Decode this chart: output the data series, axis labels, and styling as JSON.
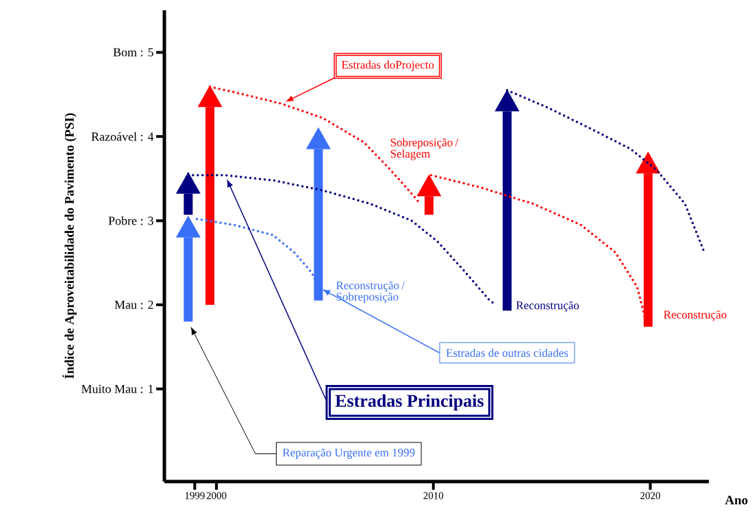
{
  "chart_data": {
    "type": "line",
    "ylabel": "Índice de Aproveitabilidade do Pavimento (PSI)",
    "xlabel": "Ano",
    "xlim": [
      1997.6,
      2022.7
    ],
    "xticks": [
      1999,
      2000,
      2010,
      2020
    ],
    "ylim": [
      -0.1,
      5.5
    ],
    "yticks": [
      {
        "value": 1,
        "label": "Muito Mau : 1"
      },
      {
        "value": 2,
        "label": "Mau : 2"
      },
      {
        "value": 3,
        "label": "Pobre : 3"
      },
      {
        "value": 4,
        "label": "Razoável : 4"
      },
      {
        "value": 5,
        "label": "Bom : 5"
      }
    ],
    "series": [
      {
        "name": "Estradas de outras cidades",
        "color": "#3a6ff7",
        "line_style": "dotted",
        "x": [
          1999.1,
          2000.8,
          2002.6,
          2003.6,
          2004.4,
          2004.7
        ],
        "values": [
          3.02,
          2.95,
          2.83,
          2.62,
          2.38,
          2.21
        ]
      },
      {
        "type": "bar",
        "color": "#3a6ff7",
        "x": [
          1998.7,
          2004.7
        ],
        "base": [
          1.8,
          2.05
        ],
        "values": [
          1.0,
          1.8
        ]
      },
      {
        "name": "Estradas Principais",
        "color": "#000080",
        "line_style": "dotted",
        "x": [
          1998.7,
          2000.4,
          2002.6,
          2004.9,
          2007.1,
          2009.0,
          2010.2,
          2011.5,
          2012.6,
          2012.9
        ],
        "values": [
          3.54,
          3.54,
          3.48,
          3.36,
          3.2,
          3.0,
          2.75,
          2.38,
          2.05,
          2.0
        ]
      },
      {
        "type": "bar",
        "color": "#000080",
        "x": [
          1998.7,
          2013.4
        ],
        "base": [
          3.07,
          1.93
        ],
        "values": [
          0.25,
          2.37
        ]
      },
      {
        "color": "#000080",
        "line_style": "dotted",
        "x": [
          2013.4,
          2015.3,
          2017.2,
          2019.1,
          2020.3,
          2021.6,
          2022.5
        ],
        "values": [
          4.55,
          4.34,
          4.1,
          3.85,
          3.6,
          3.2,
          2.62
        ]
      },
      {
        "name": "Estradas doProjecto",
        "color": "#ff0000",
        "line_style": "dotted",
        "x": [
          1999.7,
          2001.1,
          2003.0,
          2004.9,
          2006.8,
          2008.0,
          2009.0,
          2009.4
        ],
        "values": [
          4.59,
          4.51,
          4.39,
          4.22,
          3.93,
          3.61,
          3.32,
          3.2
        ]
      },
      {
        "type": "bar",
        "color": "#ff0000",
        "x": [
          1999.7,
          2009.8,
          2019.9
        ],
        "base": [
          2.0,
          3.07,
          1.74
        ],
        "values": [
          2.35,
          0.22,
          1.82
        ]
      },
      {
        "color": "#ff0000",
        "line_style": "dotted",
        "x": [
          2009.9,
          2012.1,
          2014.6,
          2016.8,
          2018.4,
          2019.4,
          2019.8
        ],
        "values": [
          3.54,
          3.4,
          3.2,
          2.95,
          2.62,
          2.21,
          1.8
        ]
      }
    ],
    "annotations": [
      "Sobreposição / Selagem",
      "Reconstrução / Sobreposição",
      "Reconstrução",
      "Reconstrução",
      "Reparação Urgente em 1999"
    ]
  }
}
